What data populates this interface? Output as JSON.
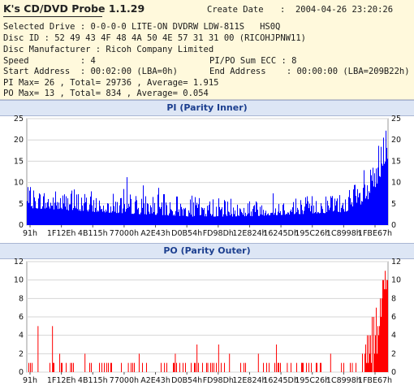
{
  "app": {
    "title": "K's CD/DVD Probe 1.1.29"
  },
  "info": {
    "create_date_label": "Create Date",
    "create_date_value": ":  2004-04-26 23:20:26",
    "selected_drive": "Selected Drive : 0-0-0-0 LITE-ON DVDRW LDW-811S   HS0Q",
    "disc_id": "Disc ID : 52 49 43 4F 48 4A 50 4E 57 31 31 00 (RICOHJPNW11)",
    "disc_manufacturer": "Disc Manufacturer : Ricoh Company Limited",
    "speed": "Speed          : 4",
    "pipo_sum": "PI/PO Sum ECC : 8",
    "start_address": "Start Address  : 00:02:00 (LBA=0h)",
    "end_address": "End Address    : 00:00:00 (LBA=209B22h)",
    "pi_stats": "PI Max= 26 , Total= 29736 , Average= 1.915",
    "po_stats": "PO Max= 13 , Total= 834 , Average= 0.054"
  },
  "chart_data": [
    {
      "type": "bar",
      "title": "PI (Parity Inner)",
      "color": "#0000ff",
      "x_tick_labels": [
        "91h",
        "1F12Eh",
        "4B115h",
        "77000h",
        "A2E43h",
        "D0B54h",
        "FD98Dh",
        "12E824h",
        "16245Dh",
        "195C26h",
        "1C8998h",
        "1FBE67h"
      ],
      "ylim": [
        0,
        25
      ],
      "y_ticks": [
        0,
        5,
        10,
        15,
        20,
        25
      ],
      "grid": true,
      "max": 26,
      "profile": [
        {
          "x": 0.0,
          "base": 4,
          "peak": 9
        },
        {
          "x": 0.2,
          "base": 3,
          "peak": 8
        },
        {
          "x": 0.45,
          "base": 2,
          "peak": 7
        },
        {
          "x": 0.6,
          "base": 2,
          "peak": 6
        },
        {
          "x": 0.88,
          "base": 3,
          "peak": 8
        },
        {
          "x": 0.94,
          "base": 5,
          "peak": 12
        },
        {
          "x": 0.97,
          "base": 9,
          "peak": 18
        },
        {
          "x": 1.0,
          "base": 14,
          "peak": 26
        }
      ]
    },
    {
      "type": "bar",
      "title": "PO (Parity Outer)",
      "color": "#ff0000",
      "x_tick_labels": [
        "91h",
        "1F12Eh",
        "4B115h",
        "77000h",
        "A2E43h",
        "D0B54h",
        "FD98Dh",
        "12E824h",
        "16245Dh",
        "195C26h",
        "1C8998h",
        "1FBE67h"
      ],
      "ylim": [
        0,
        12
      ],
      "y_ticks": [
        0,
        2,
        4,
        6,
        8,
        10,
        12
      ],
      "grid": true,
      "max": 13,
      "spikes": [
        {
          "x": 0.03,
          "v": 5
        },
        {
          "x": 0.07,
          "v": 5
        },
        {
          "x": 0.09,
          "v": 2
        },
        {
          "x": 0.12,
          "v": 1
        },
        {
          "x": 0.16,
          "v": 2
        },
        {
          "x": 0.22,
          "v": 1
        },
        {
          "x": 0.28,
          "v": 1
        },
        {
          "x": 0.31,
          "v": 2
        },
        {
          "x": 0.38,
          "v": 1
        },
        {
          "x": 0.41,
          "v": 2
        },
        {
          "x": 0.47,
          "v": 3
        },
        {
          "x": 0.5,
          "v": 1
        },
        {
          "x": 0.53,
          "v": 3
        },
        {
          "x": 0.56,
          "v": 2
        },
        {
          "x": 0.6,
          "v": 1
        },
        {
          "x": 0.64,
          "v": 2
        },
        {
          "x": 0.69,
          "v": 3
        },
        {
          "x": 0.72,
          "v": 1
        },
        {
          "x": 0.76,
          "v": 1
        },
        {
          "x": 0.8,
          "v": 1
        },
        {
          "x": 0.84,
          "v": 2
        },
        {
          "x": 0.87,
          "v": 1
        },
        {
          "x": 0.9,
          "v": 1
        }
      ]
    }
  ]
}
